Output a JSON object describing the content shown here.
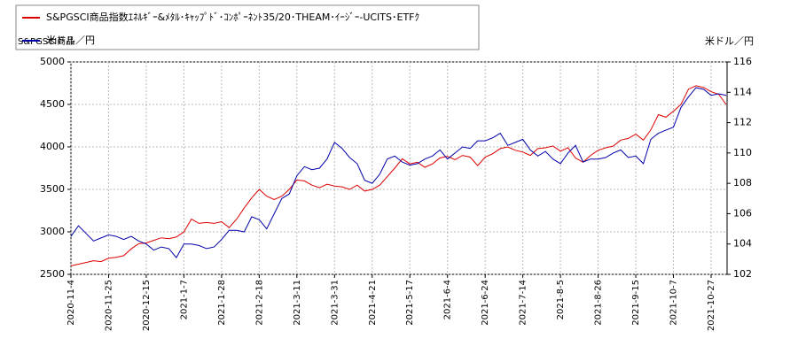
{
  "chart_data": {
    "type": "line",
    "legend": "top-left",
    "grid": true,
    "ylabel": "S&PGSCI商品",
    "y2label": "米ドル／円",
    "categories": [
      "2020-11-4",
      null,
      null,
      null,
      null,
      "2020-11-25",
      null,
      null,
      null,
      null,
      "2020-12-15",
      null,
      null,
      null,
      null,
      "2021-1-7",
      null,
      null,
      null,
      null,
      "2021-1-28",
      null,
      null,
      null,
      null,
      "2021-2-18",
      null,
      null,
      null,
      null,
      "2021-3-11",
      null,
      null,
      null,
      null,
      "2021-3-31",
      null,
      null,
      null,
      null,
      "2021-4-21",
      null,
      null,
      null,
      null,
      "2021-5-17",
      null,
      null,
      null,
      null,
      "2021-6-4",
      null,
      null,
      null,
      null,
      "2021-6-24",
      null,
      null,
      null,
      null,
      "2021-7-14",
      null,
      null,
      null,
      null,
      "2021-8-5",
      null,
      null,
      null,
      null,
      "2021-8-26",
      null,
      null,
      null,
      null,
      "2021-9-15",
      null,
      null,
      null,
      null,
      "2021-10-7",
      null,
      null,
      null,
      null,
      "2021-10-27",
      null,
      null
    ],
    "ylim": [
      2500,
      5000
    ],
    "yticks": [
      2500,
      3000,
      3500,
      4000,
      4500,
      5000
    ],
    "y2lim": [
      102,
      116
    ],
    "y2ticks": [
      102,
      104,
      106,
      108,
      110,
      112,
      114,
      116
    ],
    "series": [
      {
        "name": "S&PGSCI商品指数ｴﾈﾙｷﾞｰ&ﾒﾀﾙ･ｷｬｯﾌﾟﾄﾞ･ｺﾝﾎﾟｰﾈﾝﾄ35/20･THEAM･ｲｰｼﾞｰ-UCITS･ETFｸ",
        "color": "#dd0000",
        "values": [
          2600,
          2620,
          2640,
          2660,
          2650,
          2690,
          2700,
          2720,
          2800,
          2860,
          2870,
          2900,
          2930,
          2920,
          2940,
          3000,
          3150,
          3100,
          3110,
          3100,
          3120,
          3050,
          3150,
          3280,
          3400,
          3500,
          3420,
          3380,
          3420,
          3500,
          3610,
          3600,
          3550,
          3520,
          3560,
          3540,
          3530,
          3500,
          3550,
          3480,
          3500,
          3550,
          3650,
          3750,
          3860,
          3800,
          3820,
          3760,
          3800,
          3870,
          3890,
          3850,
          3900,
          3880,
          3780,
          3880,
          3920,
          3980,
          4000,
          3960,
          3940,
          3900,
          3980,
          3990,
          4010,
          3950,
          3990,
          3870,
          3820,
          3900,
          3960,
          3990,
          4010,
          4080,
          4100,
          4150,
          4080,
          4200,
          4380,
          4350,
          4420,
          4500,
          4680,
          4720,
          4700,
          4650,
          4620,
          4500
        ]
      },
      {
        "name": "米ドル／円",
        "color": "#0000aa",
        "axis": "y2",
        "values": [
          104.5,
          105.2,
          104.7,
          104.2,
          104.4,
          104.6,
          104.5,
          104.3,
          104.5,
          104.2,
          104.0,
          103.6,
          103.8,
          103.7,
          103.1,
          104.0,
          104.0,
          103.9,
          103.7,
          103.8,
          104.3,
          104.9,
          104.9,
          104.8,
          105.8,
          105.6,
          105.0,
          106.0,
          107.0,
          107.3,
          108.5,
          109.1,
          108.9,
          109.0,
          109.6,
          110.7,
          110.3,
          109.7,
          109.3,
          108.2,
          108.0,
          108.6,
          109.6,
          109.8,
          109.4,
          109.2,
          109.3,
          109.6,
          109.8,
          110.2,
          109.6,
          110.0,
          110.4,
          110.3,
          110.8,
          110.8,
          111.0,
          111.3,
          110.5,
          110.7,
          110.9,
          110.2,
          109.8,
          110.1,
          109.6,
          109.3,
          110.0,
          110.5,
          109.4,
          109.6,
          109.6,
          109.7,
          110.0,
          110.2,
          109.7,
          109.8,
          109.3,
          110.9,
          111.3,
          111.5,
          111.7,
          113.0,
          113.7,
          114.3,
          114.2,
          113.8,
          113.9,
          113.8
        ]
      }
    ]
  }
}
